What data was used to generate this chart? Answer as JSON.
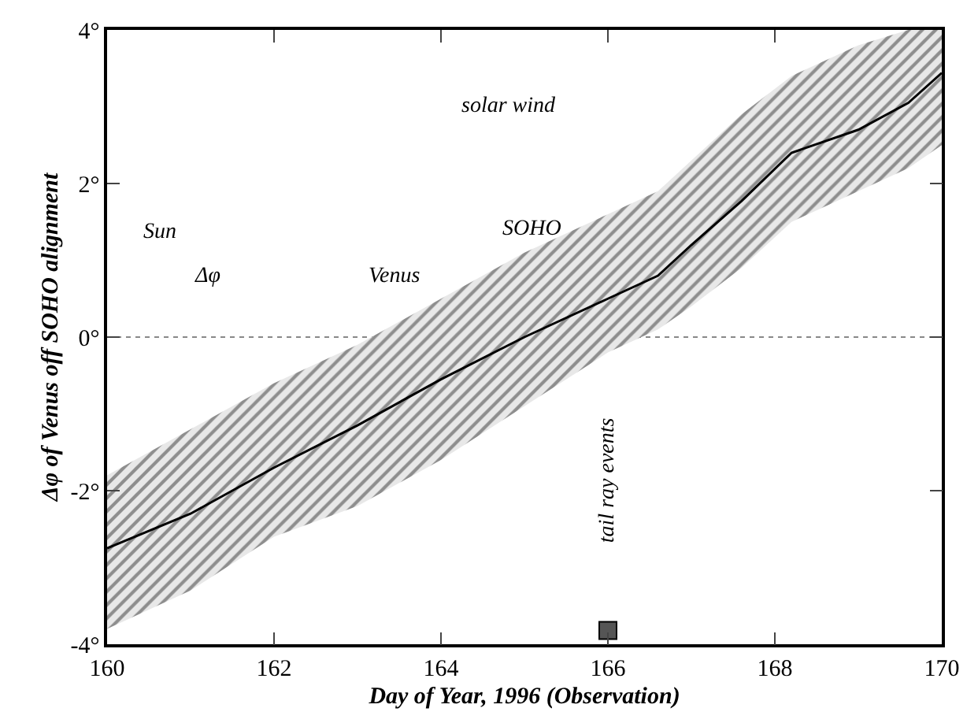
{
  "chart_data": {
    "type": "line",
    "xlabel": "Day of Year, 1996 (Observation)",
    "ylabel": "Δφ of Venus off SOHO alignment",
    "xlim": [
      160,
      170
    ],
    "ylim": [
      -4,
      4
    ],
    "xticks": [
      160,
      162,
      164,
      166,
      168,
      170
    ],
    "yticks": [
      {
        "value": -4,
        "label": "-4°"
      },
      {
        "value": -2,
        "label": "-2°"
      },
      {
        "value": 0,
        "label": "0°"
      },
      {
        "value": 2,
        "label": "2°"
      },
      {
        "value": 4,
        "label": "4°"
      }
    ],
    "marker": "none",
    "line_style": "solid",
    "series": [
      {
        "color": "#000000",
        "x": [
          160,
          161,
          162,
          163,
          164,
          165,
          166,
          166.6,
          167,
          167.6,
          168.2,
          169,
          169.6,
          170
        ],
        "values": [
          -2.75,
          -2.3,
          -1.7,
          -1.15,
          -0.55,
          0.0,
          0.5,
          0.8,
          1.2,
          1.77,
          2.4,
          2.7,
          3.05,
          3.44
        ],
        "lower": [
          -3.8,
          -3.3,
          -2.6,
          -2.2,
          -1.6,
          -0.9,
          -0.2,
          0.1,
          0.4,
          0.9,
          1.5,
          1.9,
          2.2,
          2.5
        ],
        "upper": [
          -1.8,
          -1.2,
          -0.6,
          -0.1,
          0.5,
          1.1,
          1.6,
          1.9,
          2.3,
          2.9,
          3.4,
          3.8,
          4.0,
          4.0
        ]
      },
      {
        "type": "scatter",
        "marker": "square",
        "color": "#555555",
        "x": [
          166
        ],
        "values": [
          -3.82
        ]
      }
    ],
    "ref_lines": [
      {
        "axis": "y",
        "value": 0,
        "line_style": "dotted",
        "color": "#888888"
      }
    ],
    "annotations": [
      "Sun",
      "solar wind",
      "SOHO",
      "Δφ",
      "Venus",
      "tail ray events"
    ]
  }
}
